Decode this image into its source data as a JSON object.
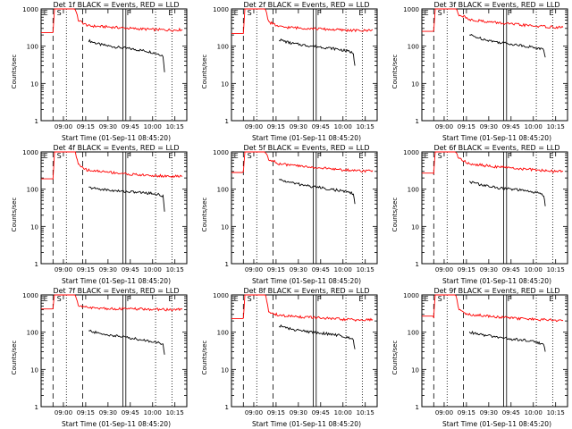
{
  "chart_data": [
    {
      "type": "line",
      "title": "Det 1f BLACK = Events, RED = LLD",
      "xlabel": "Start Time (01-Sep-11 08:45:20)",
      "ylabel": "Counts/sec",
      "x_ticks": [
        "09:00",
        "09:15",
        "09:30",
        "09:45",
        "10:00",
        "10:15"
      ],
      "y_ticks": [
        "1",
        "10",
        "100",
        "1000"
      ],
      "ylim": [
        1,
        1000
      ],
      "y_scale": "log",
      "marker_labels": [
        "E",
        "S",
        "F",
        "E"
      ],
      "series": [
        {
          "name": "BLACK = Events",
          "color": "#000000",
          "x": [
            "09:17",
            "09:25",
            "09:35",
            "09:45",
            "09:55",
            "10:02",
            "10:05",
            "10:07",
            "10:08"
          ],
          "values": [
            140,
            110,
            95,
            85,
            75,
            65,
            60,
            55,
            20
          ]
        },
        {
          "name": "RED = LLD",
          "color": "#ff0000",
          "x": [
            "08:45",
            "08:53",
            "08:54",
            "09:08",
            "09:10",
            "09:14",
            "09:17",
            "09:30",
            "09:45",
            "10:00",
            "10:15",
            "10:20"
          ],
          "values": [
            230,
            230,
            1000,
            1000,
            500,
            400,
            350,
            330,
            300,
            280,
            270,
            280
          ]
        }
      ]
    },
    {
      "type": "line",
      "title": "Det 2f BLACK = Events, RED = LLD",
      "xlabel": "Start Time (01-Sep-11 08:45:20)",
      "ylabel": "Counts/sec",
      "x_ticks": [
        "09:00",
        "09:15",
        "09:30",
        "09:45",
        "10:00",
        "10:15"
      ],
      "y_ticks": [
        "1",
        "10",
        "100",
        "1000"
      ],
      "ylim": [
        1,
        1000
      ],
      "y_scale": "log",
      "marker_labels": [
        "E",
        "S",
        "F",
        "E"
      ],
      "series": [
        {
          "name": "BLACK = Events",
          "color": "#000000",
          "x": [
            "09:17",
            "09:25",
            "09:35",
            "09:45",
            "09:55",
            "10:02",
            "10:05",
            "10:07",
            "10:08"
          ],
          "values": [
            150,
            120,
            105,
            95,
            85,
            75,
            70,
            65,
            30
          ]
        },
        {
          "name": "RED = LLD",
          "color": "#ff0000",
          "x": [
            "08:45",
            "08:53",
            "08:54",
            "09:08",
            "09:10",
            "09:14",
            "09:17",
            "09:30",
            "09:45",
            "10:00",
            "10:15",
            "10:20"
          ],
          "values": [
            220,
            220,
            1000,
            1000,
            450,
            380,
            330,
            310,
            290,
            270,
            260,
            280
          ]
        }
      ]
    },
    {
      "type": "line",
      "title": "Det 3f BLACK = Events, RED = LLD",
      "xlabel": "Start Time (01-Sep-11 08:45:20)",
      "ylabel": "Counts/sec",
      "x_ticks": [
        "09:00",
        "09:15",
        "09:30",
        "09:45",
        "10:00",
        "10:15"
      ],
      "y_ticks": [
        "1",
        "10",
        "100",
        "1000"
      ],
      "ylim": [
        1,
        1000
      ],
      "y_scale": "log",
      "marker_labels": [
        "E",
        "S",
        "F",
        "E"
      ],
      "series": [
        {
          "name": "BLACK = Events",
          "color": "#000000",
          "x": [
            "09:17",
            "09:25",
            "09:35",
            "09:45",
            "09:55",
            "10:02",
            "10:05",
            "10:07",
            "10:08"
          ],
          "values": [
            200,
            160,
            130,
            115,
            100,
            90,
            85,
            80,
            50
          ]
        },
        {
          "name": "RED = LLD",
          "color": "#ff0000",
          "x": [
            "08:45",
            "08:53",
            "08:54",
            "09:08",
            "09:10",
            "09:14",
            "09:17",
            "09:30",
            "09:45",
            "10:00",
            "10:15",
            "10:20"
          ],
          "values": [
            250,
            250,
            1000,
            1000,
            700,
            600,
            520,
            450,
            390,
            350,
            320,
            320
          ]
        }
      ]
    },
    {
      "type": "line",
      "title": "Det 4f BLACK = Events, RED = LLD",
      "xlabel": "Start Time (01-Sep-11 08:45:20)",
      "ylabel": "Counts/sec",
      "x_ticks": [
        "09:00",
        "09:15",
        "09:30",
        "09:45",
        "10:00",
        "10:15"
      ],
      "y_ticks": [
        "1",
        "10",
        "100",
        "1000"
      ],
      "ylim": [
        1,
        1000
      ],
      "y_scale": "log",
      "marker_labels": [
        "E",
        "S",
        "F",
        "E"
      ],
      "series": [
        {
          "name": "BLACK = Events",
          "color": "#000000",
          "x": [
            "09:17",
            "09:25",
            "09:35",
            "09:45",
            "09:55",
            "10:02",
            "10:05",
            "10:07",
            "10:08"
          ],
          "values": [
            110,
            100,
            90,
            85,
            80,
            75,
            70,
            65,
            25
          ]
        },
        {
          "name": "RED = LLD",
          "color": "#ff0000",
          "x": [
            "08:45",
            "08:53",
            "08:54",
            "09:08",
            "09:10",
            "09:14",
            "09:17",
            "09:30",
            "09:45",
            "10:00",
            "10:15",
            "10:20"
          ],
          "values": [
            190,
            190,
            1000,
            1000,
            450,
            350,
            320,
            290,
            250,
            230,
            220,
            220
          ]
        }
      ]
    },
    {
      "type": "line",
      "title": "Det 5f BLACK = Events, RED = LLD",
      "xlabel": "Start Time (01-Sep-11 08:45:20)",
      "ylabel": "Counts/sec",
      "x_ticks": [
        "09:00",
        "09:15",
        "09:30",
        "09:45",
        "10:00",
        "10:15"
      ],
      "y_ticks": [
        "1",
        "10",
        "100",
        "1000"
      ],
      "ylim": [
        1,
        1000
      ],
      "y_scale": "log",
      "marker_labels": [
        "E",
        "S",
        "F",
        "E"
      ],
      "series": [
        {
          "name": "BLACK = Events",
          "color": "#000000",
          "x": [
            "09:17",
            "09:25",
            "09:35",
            "09:45",
            "09:55",
            "10:02",
            "10:05",
            "10:07",
            "10:08"
          ],
          "values": [
            180,
            150,
            125,
            110,
            95,
            85,
            80,
            75,
            40
          ]
        },
        {
          "name": "RED = LLD",
          "color": "#ff0000",
          "x": [
            "08:45",
            "08:53",
            "08:54",
            "09:08",
            "09:10",
            "09:14",
            "09:17",
            "09:30",
            "09:45",
            "10:00",
            "10:15",
            "10:20"
          ],
          "values": [
            280,
            280,
            1000,
            1000,
            650,
            550,
            480,
            420,
            370,
            330,
            310,
            320
          ]
        }
      ]
    },
    {
      "type": "line",
      "title": "Det 6f BLACK = Events, RED = LLD",
      "xlabel": "Start Time (01-Sep-11 08:45:20)",
      "ylabel": "Counts/sec",
      "x_ticks": [
        "09:00",
        "09:15",
        "09:30",
        "09:45",
        "10:00",
        "10:15"
      ],
      "y_ticks": [
        "1",
        "10",
        "100",
        "1000"
      ],
      "ylim": [
        1,
        1000
      ],
      "y_scale": "log",
      "marker_labels": [
        "E",
        "S",
        "F",
        "E"
      ],
      "series": [
        {
          "name": "BLACK = Events",
          "color": "#000000",
          "x": [
            "09:17",
            "09:25",
            "09:35",
            "09:45",
            "09:55",
            "10:02",
            "10:05",
            "10:07",
            "10:08"
          ],
          "values": [
            160,
            130,
            110,
            100,
            90,
            80,
            75,
            70,
            35
          ]
        },
        {
          "name": "RED = LLD",
          "color": "#ff0000",
          "x": [
            "08:45",
            "08:53",
            "08:54",
            "09:08",
            "09:10",
            "09:14",
            "09:17",
            "09:30",
            "09:45",
            "10:00",
            "10:15",
            "10:20"
          ],
          "values": [
            270,
            270,
            1000,
            1000,
            650,
            550,
            480,
            420,
            370,
            330,
            300,
            300
          ]
        }
      ]
    },
    {
      "type": "line",
      "title": "Det 7f BLACK = Events, RED = LLD",
      "xlabel": "Start Time (01-Sep-11 08:45:20)",
      "ylabel": "Counts/sec",
      "x_ticks": [
        "09:00",
        "09:15",
        "09:30",
        "09:45",
        "10:00",
        "10:15"
      ],
      "y_ticks": [
        "1",
        "10",
        "100",
        "1000"
      ],
      "ylim": [
        1,
        1000
      ],
      "y_scale": "log",
      "marker_labels": [
        "E",
        "S",
        "F",
        "E"
      ],
      "series": [
        {
          "name": "BLACK = Events",
          "color": "#000000",
          "x": [
            "09:17",
            "09:25",
            "09:35",
            "09:45",
            "09:55",
            "10:02",
            "10:05",
            "10:07",
            "10:08"
          ],
          "values": [
            110,
            90,
            80,
            70,
            60,
            55,
            50,
            45,
            25
          ]
        },
        {
          "name": "RED = LLD",
          "color": "#ff0000",
          "x": [
            "08:45",
            "08:53",
            "08:54",
            "09:08",
            "09:10",
            "09:14",
            "09:17",
            "09:30",
            "09:45",
            "10:00",
            "10:15",
            "10:20"
          ],
          "values": [
            420,
            420,
            1000,
            1000,
            520,
            480,
            450,
            430,
            420,
            410,
            400,
            410
          ]
        }
      ]
    },
    {
      "type": "line",
      "title": "Det 8f BLACK = Events, RED = LLD",
      "xlabel": "Start Time (01-Sep-11 08:45:20)",
      "ylabel": "Counts/sec",
      "x_ticks": [
        "09:00",
        "09:15",
        "09:30",
        "09:45",
        "10:00",
        "10:15"
      ],
      "y_ticks": [
        "1",
        "10",
        "100",
        "1000"
      ],
      "ylim": [
        1,
        1000
      ],
      "y_scale": "log",
      "marker_labels": [
        "E",
        "S",
        "F",
        "E"
      ],
      "series": [
        {
          "name": "BLACK = Events",
          "color": "#000000",
          "x": [
            "09:17",
            "09:25",
            "09:35",
            "09:45",
            "09:55",
            "10:02",
            "10:05",
            "10:07",
            "10:08"
          ],
          "values": [
            150,
            120,
            105,
            95,
            85,
            75,
            70,
            65,
            35
          ]
        },
        {
          "name": "RED = LLD",
          "color": "#ff0000",
          "x": [
            "08:45",
            "08:53",
            "08:54",
            "09:08",
            "09:10",
            "09:14",
            "09:17",
            "09:30",
            "09:45",
            "10:00",
            "10:15",
            "10:20"
          ],
          "values": [
            230,
            230,
            1000,
            1000,
            350,
            310,
            280,
            260,
            240,
            220,
            210,
            220
          ]
        }
      ]
    },
    {
      "type": "line",
      "title": "Det 9f BLACK = Events, RED = LLD",
      "xlabel": "Start Time (01-Sep-11 08:45:20)",
      "ylabel": "Counts/sec",
      "x_ticks": [
        "09:00",
        "09:15",
        "09:30",
        "09:45",
        "10:00",
        "10:15"
      ],
      "y_ticks": [
        "1",
        "10",
        "100",
        "1000"
      ],
      "ylim": [
        1,
        1000
      ],
      "y_scale": "log",
      "marker_labels": [
        "E",
        "S",
        "F",
        "E"
      ],
      "series": [
        {
          "name": "BLACK = Events",
          "color": "#000000",
          "x": [
            "09:17",
            "09:25",
            "09:35",
            "09:45",
            "09:55",
            "10:02",
            "10:05",
            "10:07",
            "10:08"
          ],
          "values": [
            100,
            85,
            75,
            65,
            60,
            55,
            50,
            45,
            30
          ]
        },
        {
          "name": "RED = LLD",
          "color": "#ff0000",
          "x": [
            "08:45",
            "08:53",
            "08:54",
            "09:08",
            "09:10",
            "09:14",
            "09:17",
            "09:30",
            "09:45",
            "10:00",
            "10:15",
            "10:20"
          ],
          "values": [
            270,
            270,
            1000,
            1000,
            400,
            330,
            300,
            270,
            240,
            220,
            210,
            210
          ]
        }
      ]
    }
  ]
}
